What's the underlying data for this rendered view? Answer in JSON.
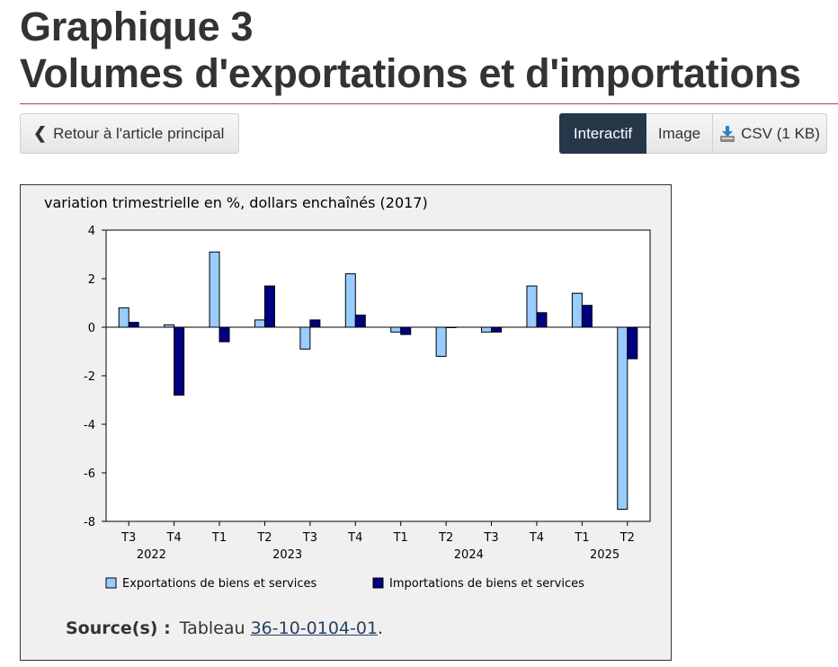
{
  "header": {
    "title_line1": "Graphique 3",
    "title_line2": "Volumes d'exportations et d'importations"
  },
  "toolbar": {
    "back_label": "Retour à l'article principal",
    "interactive_label": "Interactif",
    "image_label": "Image",
    "csv_label": "CSV (1 KB)"
  },
  "colors": {
    "exports": "#99ccff",
    "imports": "#000080",
    "rule": "#af3c43",
    "active_tab": "#26374a"
  },
  "chart_data": {
    "type": "bar",
    "title": "",
    "ylabel": "variation trimestrielle en %, dollars enchaînés (2017)",
    "ylim": [
      -8,
      4
    ],
    "yticks": [
      4,
      2,
      0,
      -2,
      -4,
      -6,
      -8
    ],
    "categories": [
      "T3",
      "T4",
      "T1",
      "T2",
      "T3",
      "T4",
      "T1",
      "T2",
      "T3",
      "T4",
      "T1",
      "T2"
    ],
    "years": [
      {
        "label": "2022",
        "start": 0,
        "end": 1
      },
      {
        "label": "2023",
        "start": 2,
        "end": 5
      },
      {
        "label": "2024",
        "start": 6,
        "end": 9
      },
      {
        "label": "2025",
        "start": 10,
        "end": 11
      }
    ],
    "series": [
      {
        "name": "Exportations de biens et services",
        "values": [
          0.8,
          0.1,
          3.1,
          0.3,
          -0.9,
          2.2,
          -0.2,
          -1.2,
          -0.2,
          1.7,
          1.4,
          -7.5
        ]
      },
      {
        "name": "Importations de biens et services",
        "values": [
          0.2,
          -2.8,
          -0.6,
          1.7,
          0.3,
          0.5,
          -0.3,
          0.0,
          -0.2,
          0.6,
          0.9,
          -1.3
        ]
      }
    ],
    "legend_position": "bottom",
    "grid": false
  },
  "source": {
    "label": "Source(s) :",
    "prefix": "Tableau",
    "link_text": "36-10-0104-01",
    "suffix": "."
  }
}
